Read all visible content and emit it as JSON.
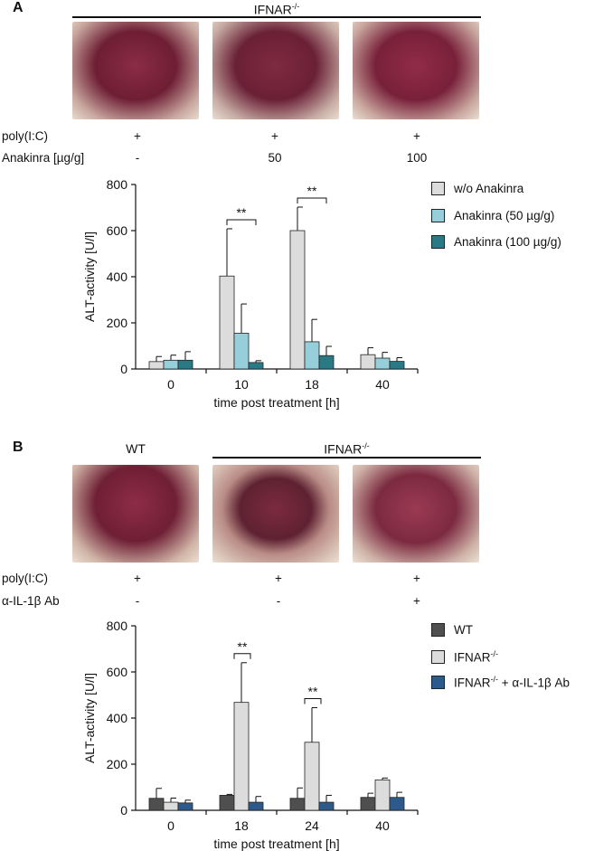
{
  "panelA": {
    "letter": "A",
    "group_label": "IFNAR-/-",
    "rows": [
      {
        "label": "poly(I:C)",
        "values": [
          "+",
          "+",
          "+"
        ]
      },
      {
        "label": "Anakinra [µg/g]",
        "values": [
          "-",
          "50",
          "100"
        ]
      }
    ],
    "colors": {
      "w/o Anakinra": "#dcdcdc",
      "Anakinra (50 µg/g)": "#96cfd9",
      "Anakinra (100 µg/g)": "#2a7a86"
    }
  },
  "panelB": {
    "letter": "B",
    "wt_label": "WT",
    "group_label": "IFNAR-/-",
    "rows": [
      {
        "label": "poly(I:C)",
        "values": [
          "+",
          "+",
          "+"
        ]
      },
      {
        "label": "α-IL-1β Ab",
        "values": [
          "-",
          "-",
          "+"
        ]
      }
    ],
    "colors": {
      "WT": "#4f4f4f",
      "IFNAR-/-": "#dcdcdc",
      "IFNAR-/- + α-IL-1β Ab": "#2c5a8c"
    }
  },
  "chart_data": [
    {
      "type": "bar",
      "xlabel": "time post treatment [h]",
      "ylabel": "ALT-activity [U/l]",
      "ylim": [
        0,
        800
      ],
      "yticks": [
        0,
        200,
        400,
        600,
        800
      ],
      "categories": [
        "0",
        "10",
        "18",
        "40"
      ],
      "series": [
        {
          "name": "w/o Anakinra",
          "values": [
            32,
            403,
            600,
            62
          ],
          "errors": [
            22,
            205,
            102,
            30
          ]
        },
        {
          "name": "Anakinra (50 µg/g)",
          "values": [
            38,
            155,
            118,
            47
          ],
          "errors": [
            22,
            127,
            97,
            25
          ]
        },
        {
          "name": "Anakinra (100 µg/g)",
          "values": [
            38,
            28,
            58,
            33
          ],
          "errors": [
            37,
            8,
            40,
            16
          ]
        }
      ],
      "legend_position": "right",
      "significance": [
        {
          "category": "10",
          "label": "**"
        },
        {
          "category": "18",
          "label": "**"
        }
      ]
    },
    {
      "type": "bar",
      "xlabel": "time post treatment [h]",
      "ylabel": "ALT-activity [U/l]",
      "ylim": [
        0,
        800
      ],
      "yticks": [
        0,
        200,
        400,
        600,
        800
      ],
      "categories": [
        "0",
        "18",
        "24",
        "40"
      ],
      "series": [
        {
          "name": "WT",
          "values": [
            52,
            65,
            52,
            56
          ],
          "errors": [
            43,
            4,
            45,
            18
          ]
        },
        {
          "name": "IFNAR-/-",
          "values": [
            35,
            468,
            295,
            132
          ],
          "errors": [
            18,
            172,
            150,
            8
          ]
        },
        {
          "name": "IFNAR-/- + α-IL-1β Ab",
          "values": [
            32,
            35,
            35,
            56
          ],
          "errors": [
            12,
            25,
            30,
            22
          ]
        }
      ],
      "legend_position": "right",
      "significance": [
        {
          "category": "18",
          "label": "**"
        },
        {
          "category": "24",
          "label": "**"
        }
      ]
    }
  ]
}
